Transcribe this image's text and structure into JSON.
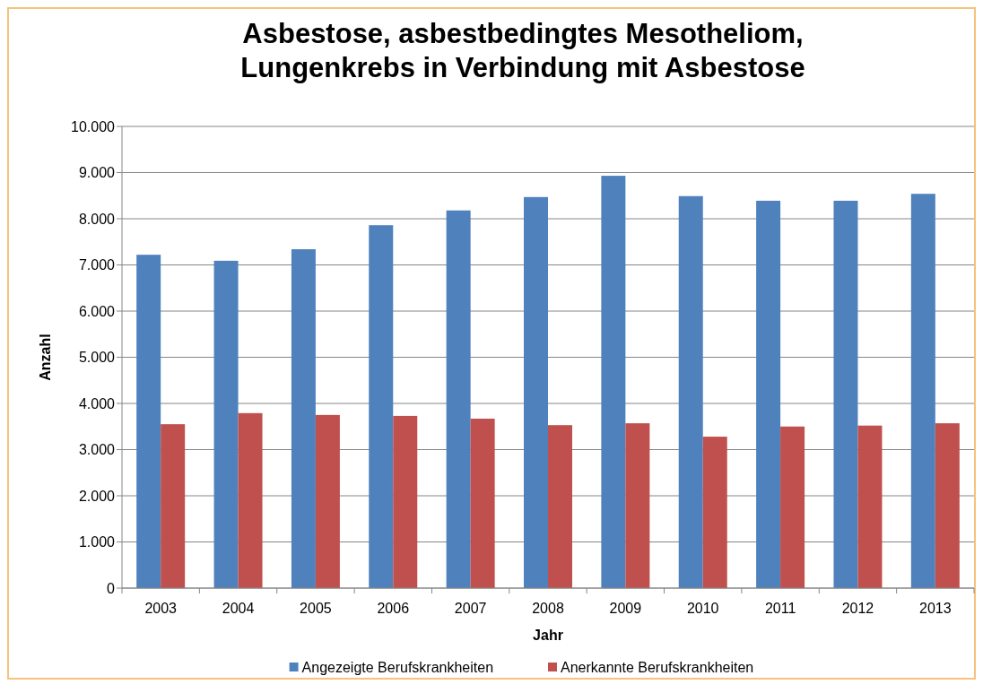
{
  "chart_data": {
    "type": "bar",
    "title": "Asbestose, asbestbedingtes Mesotheliom,\nLungenkrebs in Verbindung mit Asbestose",
    "xlabel": "Jahr",
    "ylabel": "Anzahl",
    "categories": [
      "2003",
      "2004",
      "2005",
      "2006",
      "2007",
      "2008",
      "2009",
      "2010",
      "2011",
      "2012",
      "2013"
    ],
    "series": [
      {
        "name": "Angezeigte Berufskrankheiten",
        "color": "#4f81bd",
        "values": [
          7220,
          7090,
          7340,
          7860,
          8180,
          8470,
          8930,
          8490,
          8390,
          8390,
          8540
        ]
      },
      {
        "name": "Anerkannte Berufskrankheiten",
        "color": "#c0504d",
        "values": [
          3550,
          3790,
          3750,
          3730,
          3670,
          3530,
          3570,
          3280,
          3500,
          3520,
          3570
        ]
      }
    ],
    "ylim": [
      0,
      10000
    ],
    "yticks": [
      {
        "value": 0,
        "label": "0"
      },
      {
        "value": 1000,
        "label": "1.000"
      },
      {
        "value": 2000,
        "label": "2.000"
      },
      {
        "value": 3000,
        "label": "3.000"
      },
      {
        "value": 4000,
        "label": "4.000"
      },
      {
        "value": 5000,
        "label": "5.000"
      },
      {
        "value": 6000,
        "label": "6.000"
      },
      {
        "value": 7000,
        "label": "7.000"
      },
      {
        "value": 8000,
        "label": "8.000"
      },
      {
        "value": 9000,
        "label": "9.000"
      },
      {
        "value": 10000,
        "label": "10.000"
      }
    ],
    "grid": "y",
    "legend": "bottom"
  }
}
